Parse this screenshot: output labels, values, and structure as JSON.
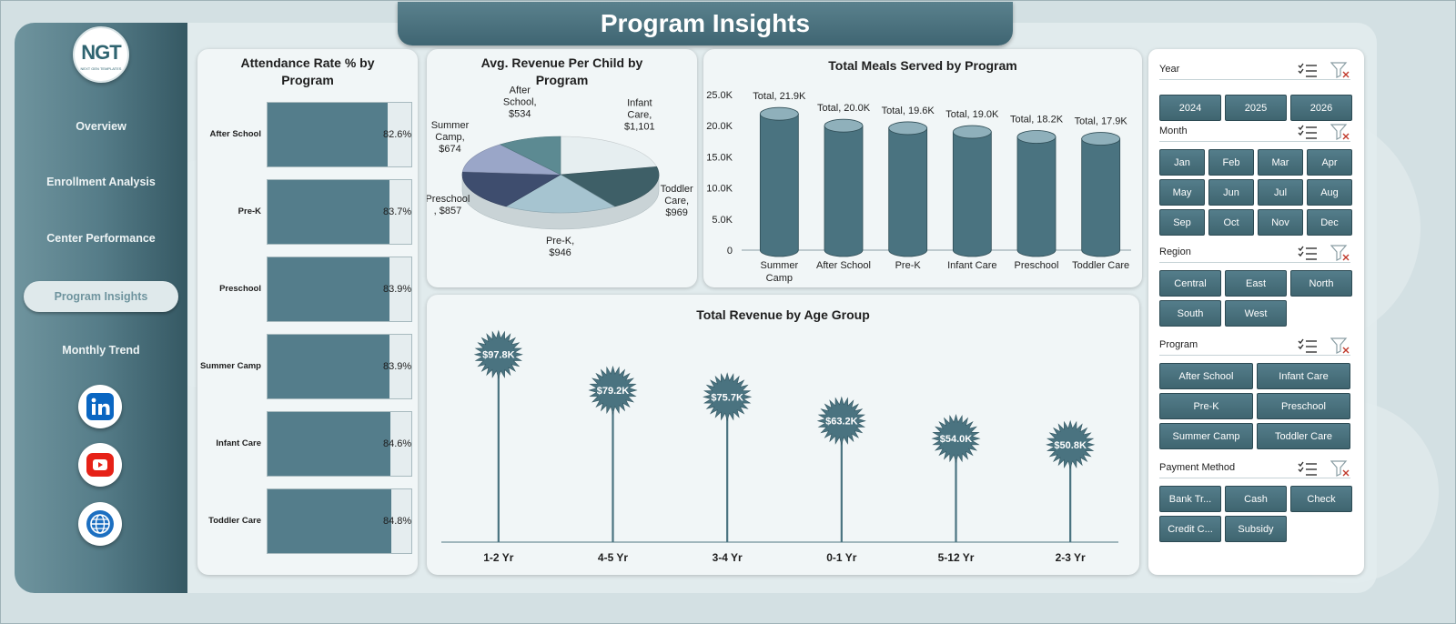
{
  "title": "Program Insights",
  "logo": {
    "text": "NGT",
    "subtitle": "NEXT GEN TEMPLATES"
  },
  "nav": [
    {
      "label": "Overview",
      "active": false
    },
    {
      "label": "Enrollment Analysis",
      "active": false
    },
    {
      "label": "Center Performance",
      "active": false
    },
    {
      "label": "Program Insights",
      "active": true
    },
    {
      "label": "Monthly Trend",
      "active": false
    }
  ],
  "social": [
    {
      "icon": "linkedin-icon",
      "color": "#0a66c2"
    },
    {
      "icon": "youtube-icon",
      "color": "#e62117"
    },
    {
      "icon": "globe-icon",
      "color": "#1c6fc1"
    }
  ],
  "colors": {
    "primary": "#547d8b",
    "dark": "#3f6570",
    "sidebar": "#557c88",
    "background": "#d3e0e3"
  },
  "chart_data": [
    {
      "type": "bar",
      "orientation": "horizontal",
      "title_lines": [
        "Attendance Rate % by",
        "Program"
      ],
      "categories": [
        "After School",
        "Pre-K",
        "Preschool",
        "Summer Camp",
        "Infant Care",
        "Toddler Care"
      ],
      "values": [
        82.6,
        83.7,
        83.9,
        83.9,
        84.6,
        84.8
      ],
      "value_labels": [
        "82.6%",
        "83.7%",
        "83.9%",
        "83.9%",
        "84.6%",
        "84.8%"
      ],
      "xlim": [
        0,
        100
      ]
    },
    {
      "type": "pie",
      "style": "3d",
      "title_lines": [
        "Avg. Revenue Per Child by",
        "Program"
      ],
      "slices": [
        {
          "label_lines": [
            "Infant",
            "Care,",
            "$1,101"
          ],
          "value": 1101,
          "color": "#e6eef0"
        },
        {
          "label_lines": [
            "Toddler",
            "Care,",
            "$969"
          ],
          "value": 969,
          "color": "#3e5f67"
        },
        {
          "label_lines": [
            "Pre-K,",
            "$946"
          ],
          "value": 946,
          "color": "#a6c4d0"
        },
        {
          "label_lines": [
            "Preschool",
            ", $857"
          ],
          "value": 857,
          "color": "#3e4d6e"
        },
        {
          "label_lines": [
            "Summer",
            "Camp,",
            "$674"
          ],
          "value": 674,
          "color": "#9aa6c8"
        },
        {
          "label_lines": [
            "After",
            "School,",
            "$534"
          ],
          "value": 534,
          "color": "#5c8a92"
        }
      ]
    },
    {
      "type": "bar",
      "style": "cylinder",
      "title": "Total Meals Served by Program",
      "categories": [
        "Summer Camp",
        "After School",
        "Pre-K",
        "Infant Care",
        "Preschool",
        "Toddler Care"
      ],
      "category_lines": [
        [
          "Summer",
          "Camp"
        ],
        [
          "After School"
        ],
        [
          "Pre-K"
        ],
        [
          "Infant Care"
        ],
        [
          "Preschool"
        ],
        [
          "Toddler Care"
        ]
      ],
      "values": [
        21900,
        20000,
        19600,
        19000,
        18200,
        17900
      ],
      "value_labels": [
        "Total, 21.9K",
        "Total, 20.0K",
        "Total, 19.6K",
        "Total, 19.0K",
        "Total, 18.2K",
        "Total, 17.9K"
      ],
      "ylim": [
        0,
        25000
      ],
      "yticks": [
        0,
        5000,
        10000,
        15000,
        20000,
        25000
      ],
      "ytick_labels": [
        "0",
        "5.0K",
        "10.0K",
        "15.0K",
        "20.0K",
        "25.0K"
      ]
    },
    {
      "type": "lollipop",
      "title": "Total Revenue  by Age Group",
      "categories": [
        "1-2 Yr",
        "4-5 Yr",
        "3-4 Yr",
        "0-1 Yr",
        "5-12 Yr",
        "2-3 Yr"
      ],
      "values": [
        97800,
        79200,
        75700,
        63200,
        54000,
        50800
      ],
      "value_labels": [
        "$97.8K",
        "$79.2K",
        "$75.7K",
        "$63.2K",
        "$54.0K",
        "$50.8K"
      ],
      "ylim": [
        0,
        110000
      ]
    }
  ],
  "slicers": {
    "year": {
      "title": "Year",
      "items": [
        "2024",
        "2025",
        "2026"
      ]
    },
    "month": {
      "title": "Month",
      "items": [
        "Jan",
        "Feb",
        "Mar",
        "Apr",
        "May",
        "Jun",
        "Jul",
        "Aug",
        "Sep",
        "Oct",
        "Nov",
        "Dec"
      ]
    },
    "region": {
      "title": "Region",
      "items": [
        "Central",
        "East",
        "North",
        "South",
        "West"
      ]
    },
    "program": {
      "title": "Program",
      "items": [
        "After School",
        "Infant Care",
        "Pre-K",
        "Preschool",
        "Summer Camp",
        "Toddler Care"
      ]
    },
    "payment": {
      "title": "Payment Method",
      "items": [
        "Bank Tr...",
        "Cash",
        "Check",
        "Credit C...",
        "Subsidy"
      ]
    }
  }
}
